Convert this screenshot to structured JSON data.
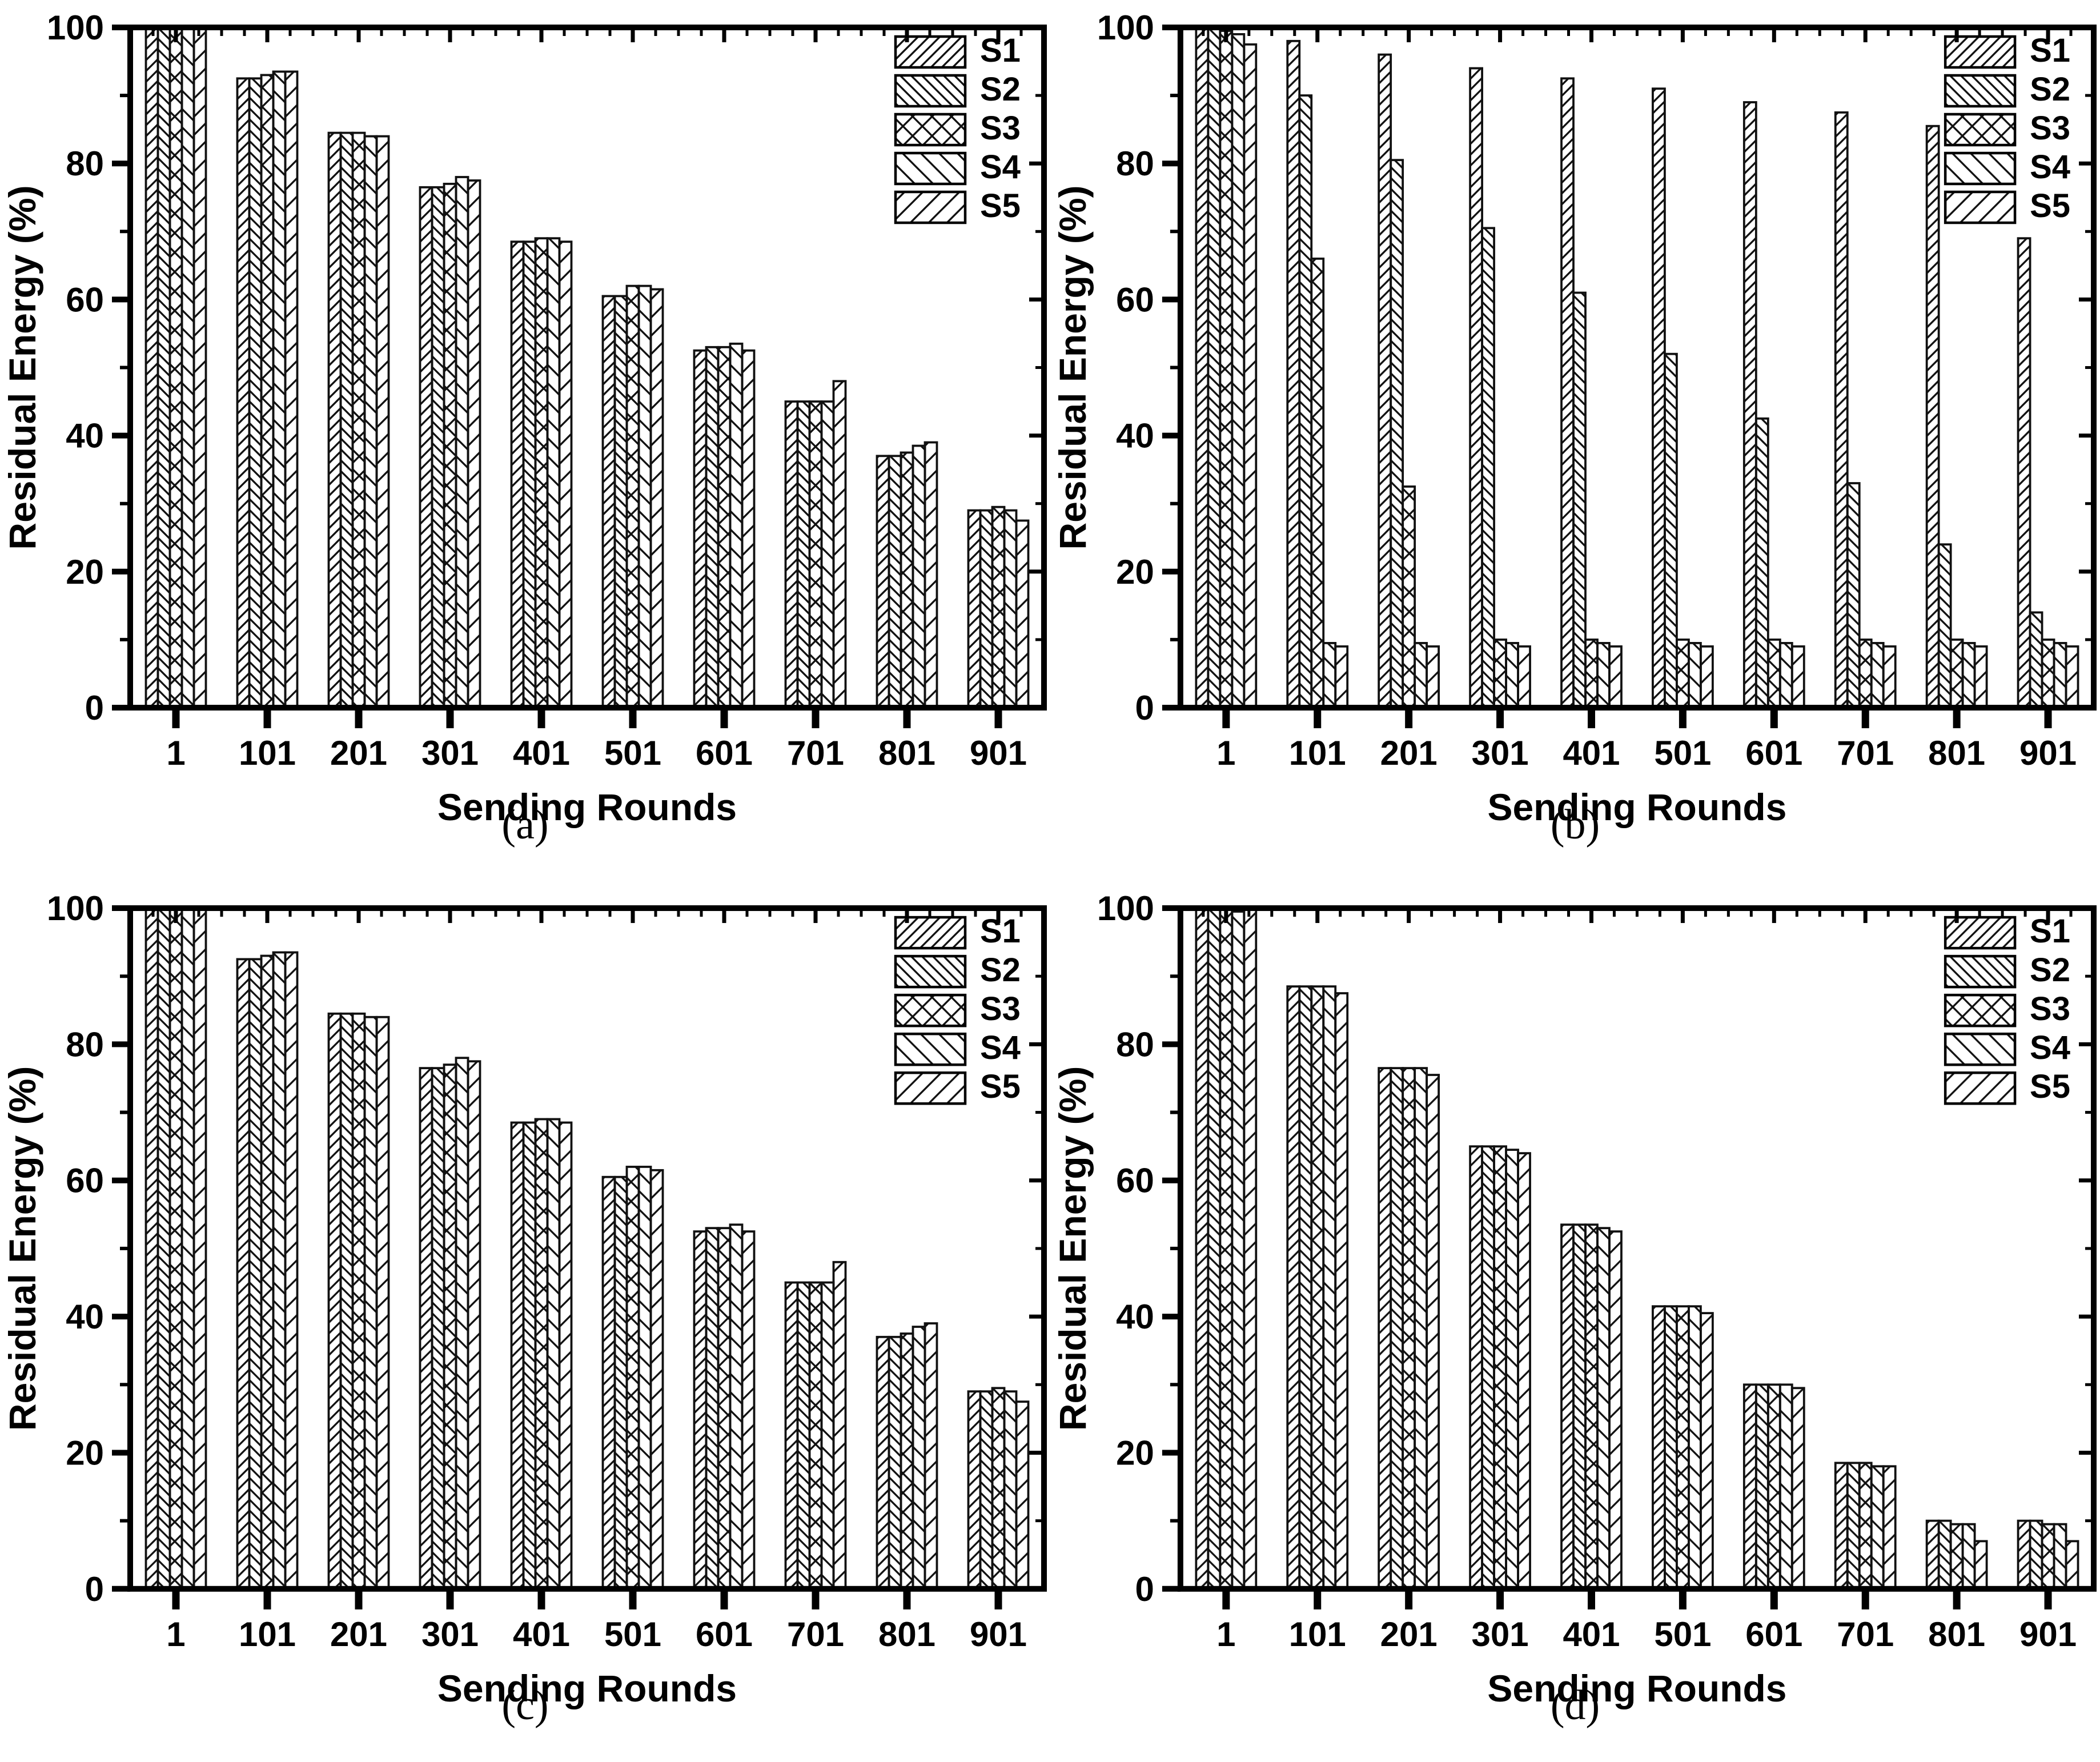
{
  "figure": {
    "background": "#ffffff",
    "text_color": "#000000",
    "axis_color": "#000000",
    "bar_fill": "#ffffff",
    "bar_stroke": "#111111",
    "captions": [
      "(a)",
      "(b)",
      "(c)",
      "(d)"
    ]
  },
  "chart_data": [
    {
      "type": "bar",
      "panel": "a",
      "title": "",
      "xlabel": "Sending Rounds",
      "ylabel": "Residual Energy (%)",
      "categories": [
        "1",
        "101",
        "201",
        "301",
        "401",
        "501",
        "601",
        "701",
        "801",
        "901"
      ],
      "ylim": [
        0,
        100
      ],
      "yticks": [
        0,
        20,
        40,
        60,
        80,
        100
      ],
      "yticks_minor": [
        10,
        30,
        50,
        70,
        90
      ],
      "grid": false,
      "legend_position": "top-right",
      "hatches": [
        "diag-up-dense",
        "diag-down-dense",
        "crosshatch",
        "diag-down-sparse",
        "diag-up-sparse"
      ],
      "series": [
        {
          "name": "S1",
          "values": [
            100,
            92.5,
            84.5,
            76.5,
            68.5,
            60.5,
            52.5,
            45,
            37,
            29
          ]
        },
        {
          "name": "S2",
          "values": [
            100,
            92.5,
            84.5,
            76.5,
            68.5,
            60.5,
            53,
            45,
            37,
            29
          ]
        },
        {
          "name": "S3",
          "values": [
            100,
            93,
            84.5,
            77,
            69,
            62,
            53,
            45,
            37.5,
            29.5
          ]
        },
        {
          "name": "S4",
          "values": [
            100,
            93.5,
            84,
            78,
            69,
            62,
            53.5,
            45,
            38.5,
            29
          ]
        },
        {
          "name": "S5",
          "values": [
            100,
            93.5,
            84,
            77.5,
            68.5,
            61.5,
            52.5,
            48,
            39,
            27.5
          ]
        }
      ]
    },
    {
      "type": "bar",
      "panel": "b",
      "title": "",
      "xlabel": "Sending Rounds",
      "ylabel": "Residual Energy (%)",
      "categories": [
        "1",
        "101",
        "201",
        "301",
        "401",
        "501",
        "601",
        "701",
        "801",
        "901"
      ],
      "ylim": [
        0,
        100
      ],
      "yticks": [
        0,
        20,
        40,
        60,
        80,
        100
      ],
      "yticks_minor": [
        10,
        30,
        50,
        70,
        90
      ],
      "grid": false,
      "legend_position": "top-right",
      "hatches": [
        "diag-up-dense",
        "diag-down-dense",
        "crosshatch",
        "diag-down-sparse",
        "diag-up-sparse"
      ],
      "series": [
        {
          "name": "S1",
          "values": [
            100,
            98,
            96,
            94,
            92.5,
            91,
            89,
            87.5,
            85.5,
            69
          ]
        },
        {
          "name": "S2",
          "values": [
            100,
            90,
            80.5,
            70.5,
            61,
            52,
            42.5,
            33,
            24,
            14
          ]
        },
        {
          "name": "S3",
          "values": [
            99.5,
            66,
            32.5,
            10,
            10,
            10,
            10,
            10,
            10,
            10
          ]
        },
        {
          "name": "S4",
          "values": [
            99,
            9.5,
            9.5,
            9.5,
            9.5,
            9.5,
            9.5,
            9.5,
            9.5,
            9.5
          ]
        },
        {
          "name": "S5",
          "values": [
            97.5,
            9,
            9,
            9,
            9,
            9,
            9,
            9,
            9,
            9
          ]
        }
      ]
    },
    {
      "type": "bar",
      "panel": "c",
      "title": "",
      "xlabel": "Sending Rounds",
      "ylabel": "Residual Energy (%)",
      "categories": [
        "1",
        "101",
        "201",
        "301",
        "401",
        "501",
        "601",
        "701",
        "801",
        "901"
      ],
      "ylim": [
        0,
        100
      ],
      "yticks": [
        0,
        20,
        40,
        60,
        80,
        100
      ],
      "yticks_minor": [
        10,
        30,
        50,
        70,
        90
      ],
      "grid": false,
      "legend_position": "top-right",
      "hatches": [
        "diag-up-dense",
        "diag-down-dense",
        "crosshatch",
        "diag-down-sparse",
        "diag-up-sparse"
      ],
      "series": [
        {
          "name": "S1",
          "values": [
            100,
            92.5,
            84.5,
            76.5,
            68.5,
            60.5,
            52.5,
            45,
            37,
            29
          ]
        },
        {
          "name": "S2",
          "values": [
            100,
            92.5,
            84.5,
            76.5,
            68.5,
            60.5,
            53,
            45,
            37,
            29
          ]
        },
        {
          "name": "S3",
          "values": [
            100,
            93,
            84.5,
            77,
            69,
            62,
            53,
            45,
            37.5,
            29.5
          ]
        },
        {
          "name": "S4",
          "values": [
            100,
            93.5,
            84,
            78,
            69,
            62,
            53.5,
            45,
            38.5,
            29
          ]
        },
        {
          "name": "S5",
          "values": [
            100,
            93.5,
            84,
            77.5,
            68.5,
            61.5,
            52.5,
            48,
            39,
            27.5
          ]
        }
      ]
    },
    {
      "type": "bar",
      "panel": "d",
      "title": "",
      "xlabel": "Sending Rounds",
      "ylabel": "Residual Energy (%)",
      "categories": [
        "1",
        "101",
        "201",
        "301",
        "401",
        "501",
        "601",
        "701",
        "801",
        "901"
      ],
      "ylim": [
        0,
        100
      ],
      "yticks": [
        0,
        20,
        40,
        60,
        80,
        100
      ],
      "yticks_minor": [
        10,
        30,
        50,
        70,
        90
      ],
      "grid": false,
      "legend_position": "top-right",
      "hatches": [
        "diag-up-dense",
        "diag-down-dense",
        "crosshatch",
        "diag-down-sparse",
        "diag-up-sparse"
      ],
      "series": [
        {
          "name": "S1",
          "values": [
            100,
            88.5,
            76.5,
            65,
            53.5,
            41.5,
            30,
            18.5,
            10,
            10
          ]
        },
        {
          "name": "S2",
          "values": [
            100,
            88.5,
            76.5,
            65,
            53.5,
            41.5,
            30,
            18.5,
            10,
            10
          ]
        },
        {
          "name": "S3",
          "values": [
            100,
            88.5,
            76.5,
            65,
            53.5,
            41.5,
            30,
            18.5,
            9.5,
            9.5
          ]
        },
        {
          "name": "S4",
          "values": [
            99.5,
            88.5,
            76.5,
            64.5,
            53,
            41.5,
            30,
            18,
            9.5,
            9.5
          ]
        },
        {
          "name": "S5",
          "values": [
            100,
            87.5,
            75.5,
            64,
            52.5,
            40.5,
            29.5,
            18,
            7,
            7
          ]
        }
      ]
    }
  ]
}
